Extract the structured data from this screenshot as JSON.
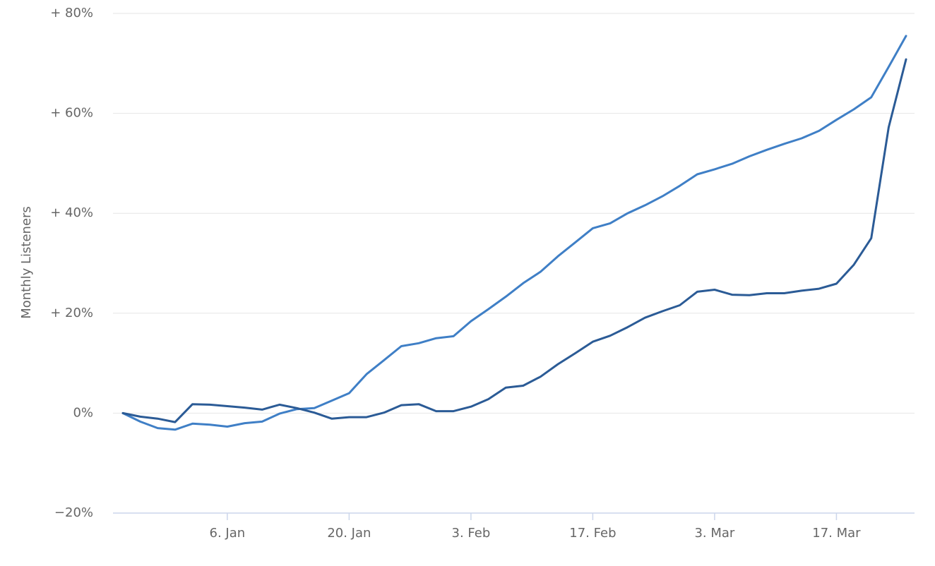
{
  "chart_data": {
    "type": "line",
    "y_label": "Monthly Listeners",
    "categories": [
      null,
      null,
      null,
      null,
      null,
      null,
      "6. Jan",
      null,
      null,
      null,
      null,
      null,
      null,
      "20. Jan",
      null,
      null,
      null,
      null,
      null,
      null,
      "3. Feb",
      null,
      null,
      null,
      null,
      null,
      null,
      "17. Feb",
      null,
      null,
      null,
      null,
      null,
      null,
      "3. Mar",
      null,
      null,
      null,
      null,
      null,
      null,
      "17. Mar",
      null,
      null,
      null,
      null
    ],
    "series": [
      {
        "color": "#3f7fc6",
        "values": [
          0,
          -1.7,
          -3,
          -3.3,
          -2.1,
          -2.3,
          -2.7,
          -2,
          -1.7,
          -0.1,
          0.8,
          1,
          2.5,
          4,
          7.8,
          10.6,
          13.4,
          14,
          15,
          15.4,
          18.4,
          20.8,
          23.3,
          26,
          28.3,
          31.4,
          34.2,
          37,
          38,
          40,
          41.6,
          43.4,
          45.5,
          47.8,
          48.8,
          49.9,
          51.4,
          52.7,
          53.9,
          55,
          56.5,
          58.7,
          60.8,
          63.2,
          69.3,
          75.5
        ]
      },
      {
        "color": "#2b5b96",
        "values": [
          0,
          -0.7,
          -1.1,
          -1.8,
          1.8,
          1.7,
          1.4,
          1.1,
          0.7,
          1.7,
          1,
          0.1,
          -1.1,
          -0.8,
          -0.8,
          0.1,
          1.6,
          1.8,
          0.4,
          0.4,
          1.3,
          2.8,
          5.1,
          5.5,
          7.3,
          9.8,
          12,
          14.3,
          15.5,
          17.2,
          19.1,
          20.4,
          21.6,
          24.3,
          24.7,
          23.7,
          23.6,
          24,
          24,
          24.5,
          24.9,
          25.9,
          29.7,
          35,
          57.2,
          70.8
        ]
      }
    ],
    "ylim": [
      -20,
      80
    ],
    "yticks": [
      {
        "value": -20,
        "label": "−20%"
      },
      {
        "value": 0,
        "label": "0%"
      },
      {
        "value": 20,
        "label": "+ 20%"
      },
      {
        "value": 40,
        "label": "+ 40%"
      },
      {
        "value": 60,
        "label": "+ 60%"
      },
      {
        "value": 80,
        "label": "+ 80%"
      }
    ],
    "grid": true
  }
}
